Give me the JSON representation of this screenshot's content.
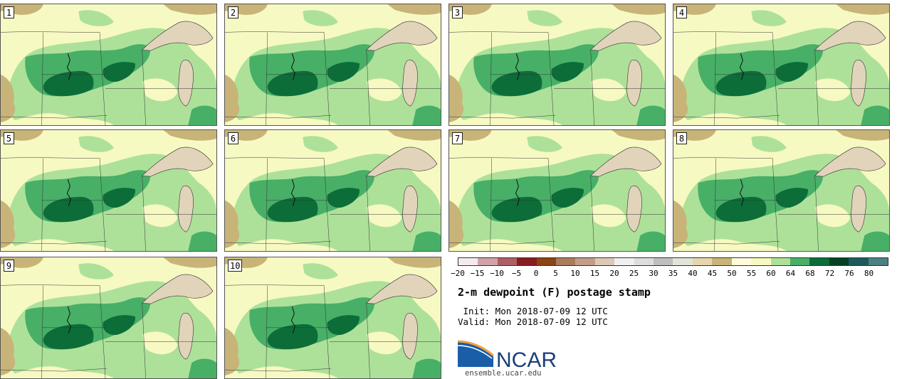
{
  "panels": [
    {
      "label": "1"
    },
    {
      "label": "2"
    },
    {
      "label": "3"
    },
    {
      "label": "4"
    },
    {
      "label": "5"
    },
    {
      "label": "6"
    },
    {
      "label": "7"
    },
    {
      "label": "8"
    },
    {
      "label": "9"
    },
    {
      "label": "10"
    }
  ],
  "colorbar": {
    "colors": [
      "#f5ebef",
      "#d2a2a8",
      "#ad5f63",
      "#8b1a22",
      "#8b4414",
      "#aa7b5c",
      "#c39c88",
      "#ddc8b8",
      "#efefef",
      "#dddddd",
      "#bebebe",
      "#e1e4d6",
      "#e5d6ad",
      "#c8b478",
      "#fffcdc",
      "#f7f9c2",
      "#ade199",
      "#48af67",
      "#0c6d38",
      "#064023",
      "#1e5a5a",
      "#4d8080"
    ],
    "ticks": [
      "−20",
      "−15",
      "−10",
      "−5",
      "0",
      "5",
      "10",
      "15",
      "20",
      "25",
      "30",
      "35",
      "40",
      "45",
      "50",
      "55",
      "60",
      "64",
      "68",
      "72",
      "76",
      "80"
    ]
  },
  "title": "2-m dewpoint (F) postage stamp",
  "init_line": " Init: Mon 2018-07-09 12 UTC",
  "valid_line": "Valid: Mon 2018-07-09 12 UTC",
  "logo_text": "NCAR",
  "site": "ensemble.ucar.edu",
  "colors": {
    "lake": "#e2d4bb",
    "dry": "#c8b478",
    "lightGreen": "#ade199",
    "midGreen": "#48af67",
    "darkGreen": "#0c6d38",
    "pale": "#f7f9c2"
  }
}
